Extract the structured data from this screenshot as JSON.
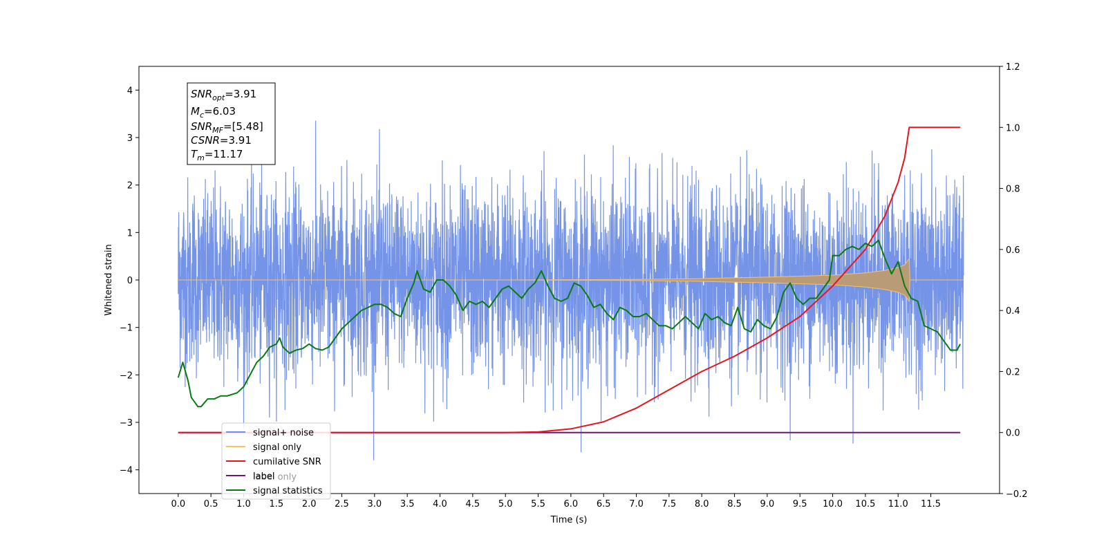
{
  "chart_data": {
    "type": "line",
    "xlabel": "Time (s)",
    "ylabel": "Whitened strain",
    "xlim": [
      -0.6,
      12.55
    ],
    "ylim": [
      -4.5,
      4.5
    ],
    "y2lim": [
      -0.2,
      1.2
    ],
    "x_ticks": [
      0.0,
      0.5,
      1.0,
      1.5,
      2.0,
      2.5,
      3.0,
      3.5,
      4.0,
      4.5,
      5.0,
      5.5,
      6.0,
      6.5,
      7.0,
      7.5,
      8.0,
      8.5,
      9.0,
      9.5,
      10.0,
      10.5,
      11.0,
      11.5
    ],
    "x_tick_labels": [
      "0.0",
      "0.5",
      "1.0",
      "1.5",
      "2.0",
      "2.5",
      "3.0",
      "3.5",
      "4.0",
      "4.5",
      "5.0",
      "5.5",
      "6.0",
      "6.5",
      "7.0",
      "7.5",
      "8.0",
      "8.5",
      "9.0",
      "9.5",
      "10.0",
      "10.5",
      "11.0",
      "11.5"
    ],
    "y_ticks": [
      -4,
      -3,
      -2,
      -1,
      0,
      1,
      2,
      3,
      4
    ],
    "y_tick_labels": [
      "−4",
      "−3",
      "−2",
      "−1",
      "0",
      "1",
      "2",
      "3",
      "4"
    ],
    "y2_ticks": [
      -0.2,
      0.0,
      0.2,
      0.4,
      0.6,
      0.8,
      1.0,
      1.2
    ],
    "y2_tick_labels": [
      "−0.2",
      "0.0",
      "0.2",
      "0.4",
      "0.6",
      "0.8",
      "1.0",
      "1.2"
    ],
    "grid": false,
    "legend_placement": "lower-left",
    "series": [
      {
        "name": "signal+ noise",
        "axis": "left",
        "color": "#6f8ee6",
        "note": "whitened noise, approx. range -3.8 to 4.1, x 0.0 to 12.0"
      },
      {
        "name": "signal only",
        "axis": "left",
        "color": "#f5c26b",
        "envelope_x": [
          0.0,
          5.0,
          7.0,
          8.0,
          9.0,
          9.5,
          10.0,
          10.5,
          10.8,
          11.0,
          11.1,
          11.17,
          11.18,
          12.0
        ],
        "envelope_y": [
          0.0,
          0.0,
          0.01,
          0.03,
          0.06,
          0.08,
          0.1,
          0.15,
          0.2,
          0.26,
          0.32,
          0.45,
          0.0,
          0.0
        ]
      },
      {
        "name": "cumilative SNR",
        "axis": "right",
        "color": "#e8141c",
        "x": [
          0.0,
          5.0,
          5.5,
          6.0,
          6.5,
          7.0,
          7.5,
          8.0,
          8.5,
          9.0,
          9.5,
          10.0,
          10.5,
          10.8,
          11.0,
          11.1,
          11.17,
          11.5,
          11.95
        ],
        "y": [
          0.0,
          0.0,
          0.002,
          0.012,
          0.035,
          0.08,
          0.14,
          0.2,
          0.25,
          0.31,
          0.38,
          0.48,
          0.6,
          0.71,
          0.82,
          0.9,
          1.0,
          1.0,
          1.0
        ]
      },
      {
        "name": "label",
        "axis": "right",
        "color": "#6a1a72",
        "x": [
          0.0,
          11.95
        ],
        "y": [
          0.0,
          0.0
        ]
      },
      {
        "name": "signal statistics",
        "axis": "right",
        "color": "#0a7a10",
        "x": [
          0.0,
          0.07,
          0.15,
          0.2,
          0.3,
          0.35,
          0.45,
          0.55,
          0.65,
          0.75,
          0.9,
          1.0,
          1.1,
          1.2,
          1.3,
          1.4,
          1.5,
          1.55,
          1.6,
          1.7,
          1.8,
          1.9,
          2.0,
          2.1,
          2.2,
          2.3,
          2.4,
          2.5,
          2.6,
          2.7,
          2.8,
          2.9,
          3.0,
          3.1,
          3.2,
          3.3,
          3.4,
          3.5,
          3.6,
          3.65,
          3.7,
          3.75,
          3.85,
          3.95,
          4.05,
          4.15,
          4.25,
          4.35,
          4.45,
          4.55,
          4.65,
          4.75,
          4.85,
          4.95,
          5.05,
          5.15,
          5.25,
          5.35,
          5.45,
          5.55,
          5.65,
          5.75,
          5.85,
          5.95,
          6.05,
          6.15,
          6.25,
          6.35,
          6.45,
          6.55,
          6.65,
          6.75,
          6.85,
          6.95,
          7.05,
          7.15,
          7.25,
          7.35,
          7.45,
          7.55,
          7.65,
          7.75,
          7.85,
          7.95,
          8.05,
          8.15,
          8.25,
          8.35,
          8.45,
          8.55,
          8.65,
          8.75,
          8.85,
          8.95,
          9.05,
          9.15,
          9.25,
          9.35,
          9.45,
          9.55,
          9.65,
          9.75,
          9.85,
          9.95,
          10.0,
          10.1,
          10.2,
          10.3,
          10.4,
          10.5,
          10.6,
          10.7,
          10.8,
          10.9,
          11.0,
          11.1,
          11.2,
          11.3,
          11.4,
          11.5,
          11.6,
          11.7,
          11.8,
          11.9,
          11.95
        ],
        "y": [
          0.18,
          0.23,
          0.17,
          0.115,
          0.085,
          0.085,
          0.11,
          0.11,
          0.12,
          0.12,
          0.13,
          0.15,
          0.19,
          0.23,
          0.25,
          0.28,
          0.29,
          0.31,
          0.28,
          0.26,
          0.27,
          0.275,
          0.29,
          0.275,
          0.27,
          0.28,
          0.31,
          0.34,
          0.36,
          0.38,
          0.4,
          0.41,
          0.42,
          0.42,
          0.41,
          0.39,
          0.38,
          0.44,
          0.49,
          0.53,
          0.5,
          0.47,
          0.46,
          0.5,
          0.5,
          0.48,
          0.45,
          0.4,
          0.43,
          0.42,
          0.43,
          0.41,
          0.44,
          0.47,
          0.48,
          0.46,
          0.44,
          0.47,
          0.49,
          0.53,
          0.48,
          0.44,
          0.43,
          0.44,
          0.49,
          0.48,
          0.45,
          0.41,
          0.42,
          0.39,
          0.37,
          0.41,
          0.4,
          0.38,
          0.38,
          0.39,
          0.37,
          0.35,
          0.35,
          0.34,
          0.36,
          0.38,
          0.36,
          0.34,
          0.39,
          0.37,
          0.38,
          0.36,
          0.35,
          0.41,
          0.34,
          0.33,
          0.37,
          0.35,
          0.34,
          0.38,
          0.46,
          0.49,
          0.44,
          0.42,
          0.44,
          0.44,
          0.47,
          0.5,
          0.58,
          0.58,
          0.6,
          0.61,
          0.6,
          0.62,
          0.61,
          0.63,
          0.57,
          0.52,
          0.56,
          0.48,
          0.44,
          0.43,
          0.35,
          0.34,
          0.33,
          0.3,
          0.27,
          0.27,
          0.29
        ]
      }
    ],
    "annotation": {
      "lines": [
        {
          "label": "SNR",
          "sub": "opt",
          "value": "=3.91"
        },
        {
          "label": "M",
          "sub": "c",
          "value": "=6.03"
        },
        {
          "label": "SNR",
          "sub": "MF",
          "value": "=[5.48]"
        },
        {
          "label": "CSNR",
          "sub": "",
          "value": "=3.91"
        },
        {
          "label": "T",
          "sub": "m",
          "value": "=11.17"
        }
      ]
    },
    "legend": [
      "signal+ noise",
      "signal only",
      "cumilative SNR",
      "label",
      "signal statistics"
    ],
    "legend_hidden_fragment": "label only"
  }
}
